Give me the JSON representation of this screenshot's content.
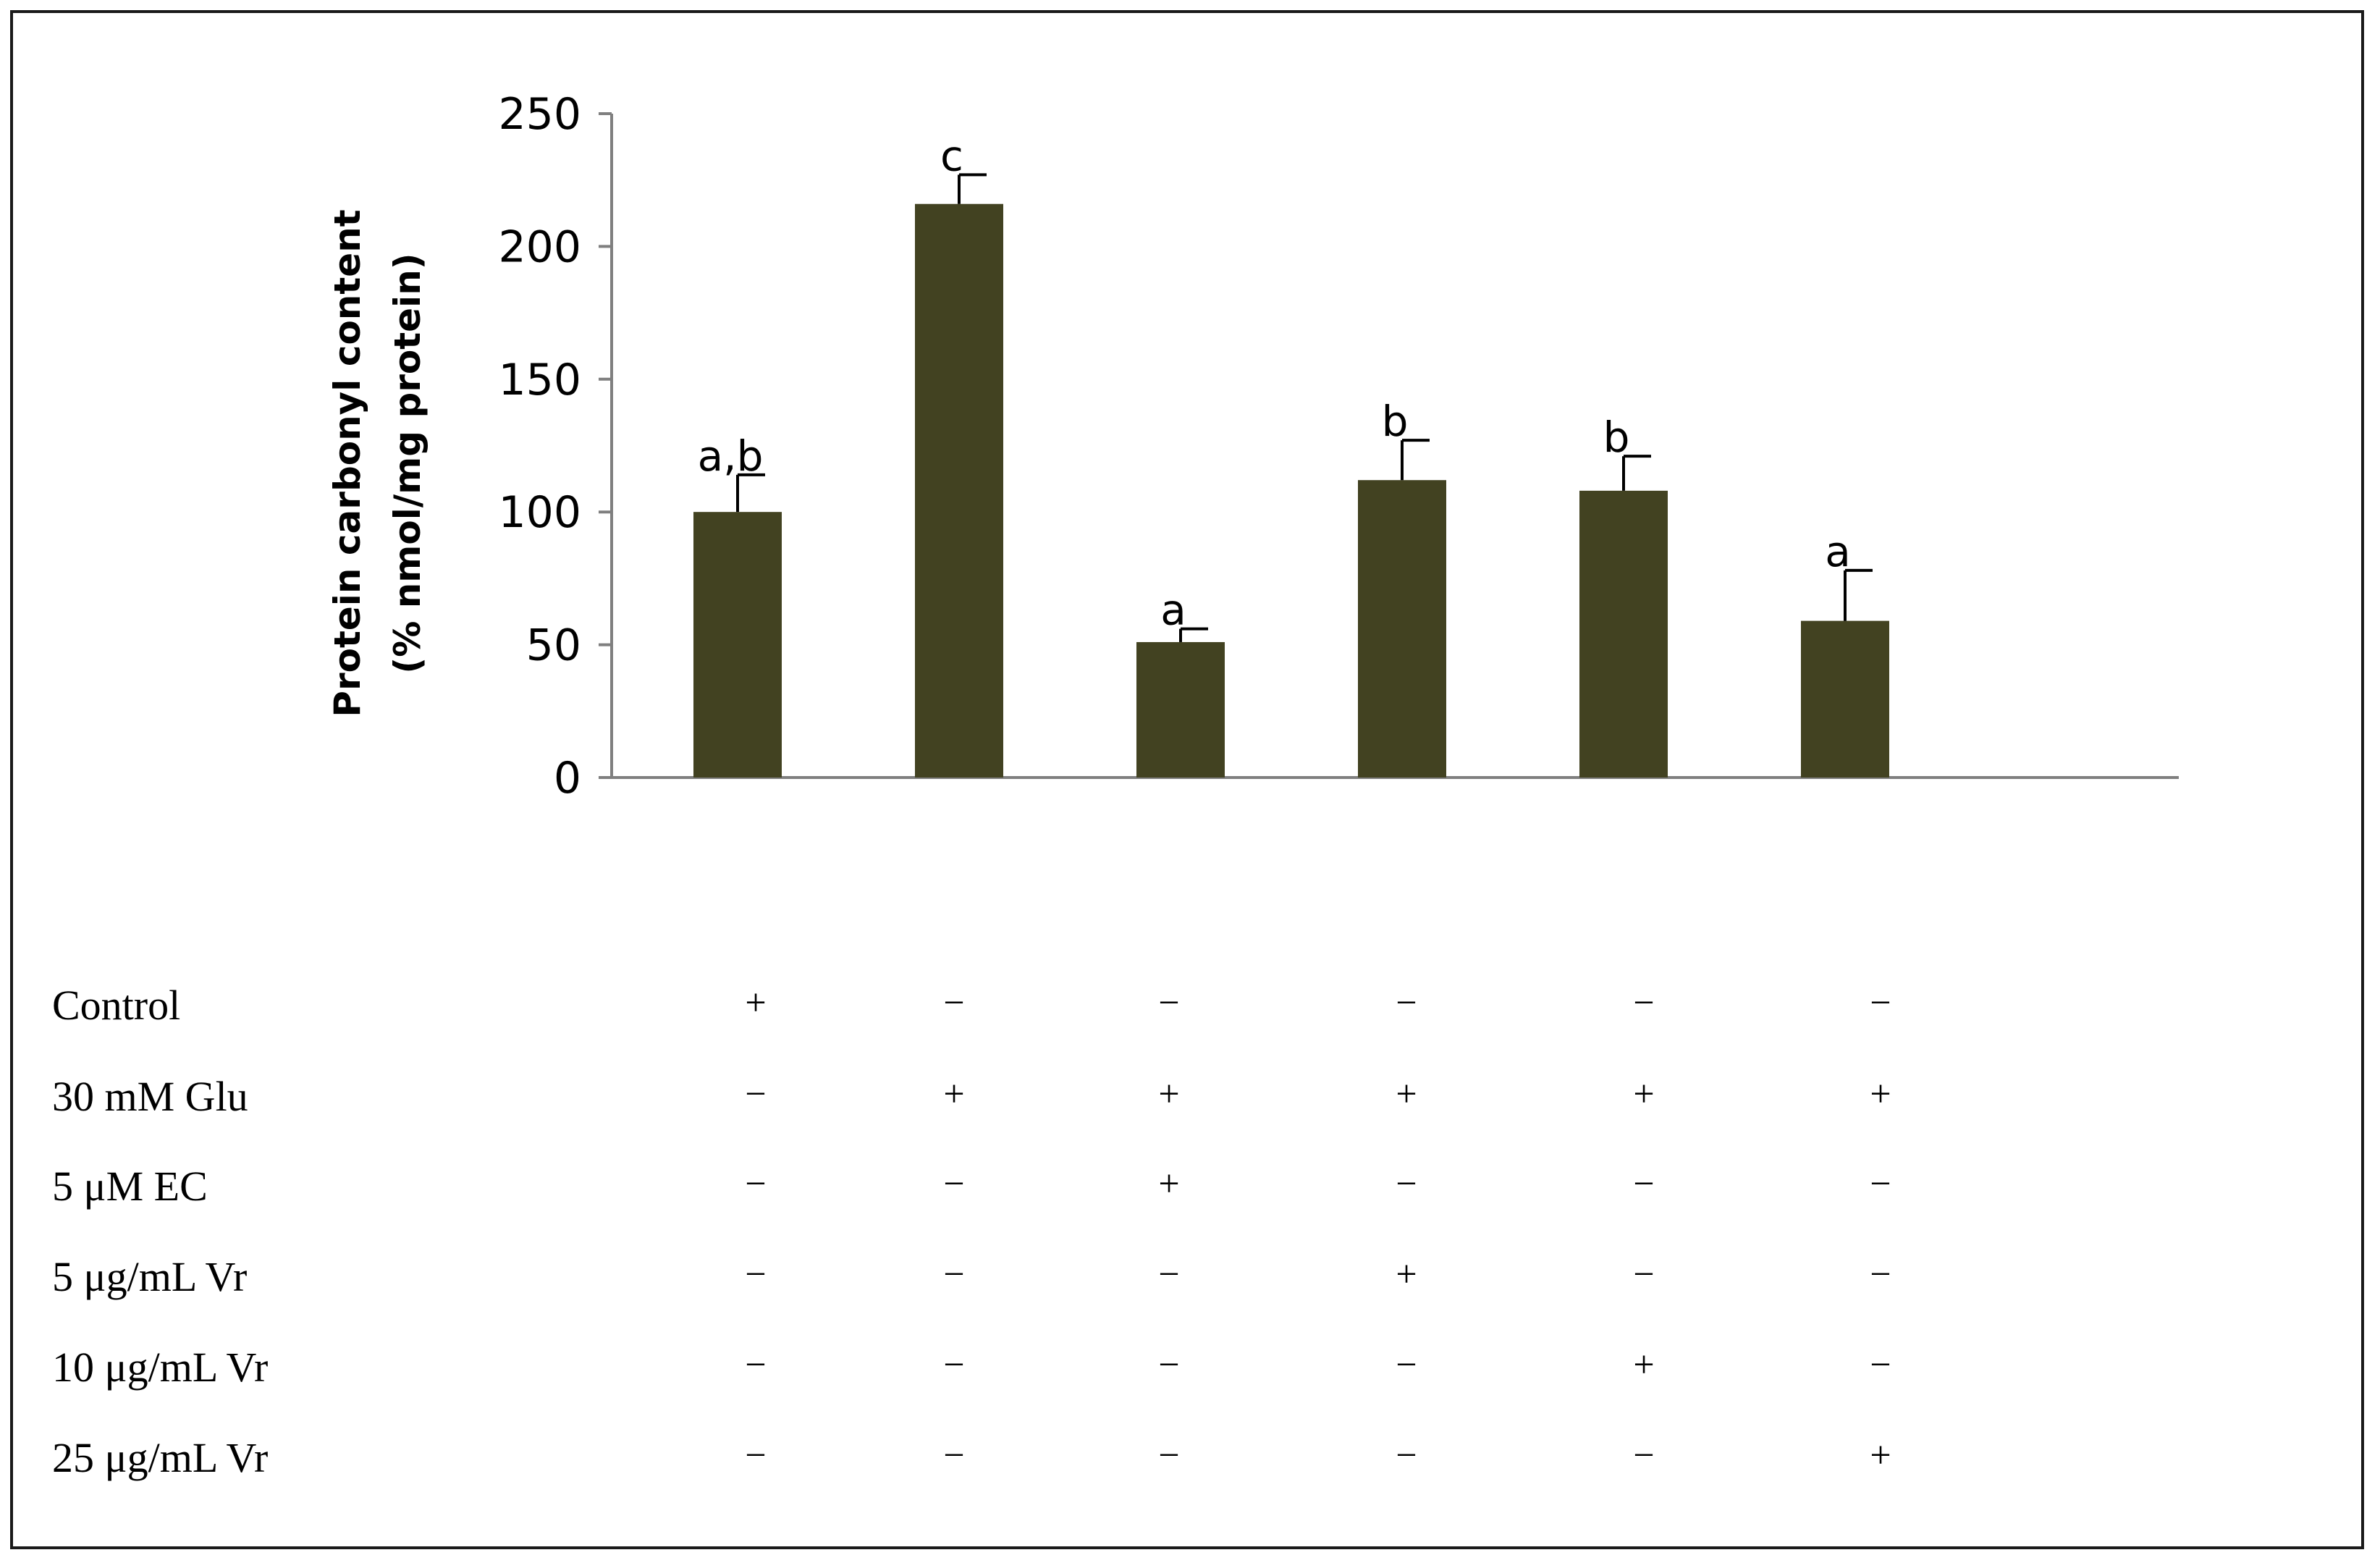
{
  "chart_data": {
    "type": "bar",
    "title": "",
    "xlabel": "",
    "ylabel_lines": [
      "Protein carbonyl content",
      "(% nmol/mg protein)"
    ],
    "ylim": [
      0,
      250
    ],
    "yticks": [
      0,
      50,
      100,
      150,
      200,
      250
    ],
    "grid": false,
    "bar_color": "#424221",
    "values": [
      100,
      216,
      51,
      112,
      108,
      59
    ],
    "errors": [
      14,
      11,
      5,
      15,
      13,
      19
    ],
    "significance": [
      "a,b",
      "c",
      "a",
      "b",
      "b",
      "a"
    ]
  },
  "treatments": {
    "rows": [
      {
        "label": "Control",
        "marks": [
          "+",
          "−",
          "−",
          "−",
          "−",
          "−"
        ]
      },
      {
        "label": "30 mM Glu",
        "marks": [
          "−",
          "+",
          "+",
          "+",
          "+",
          "+"
        ]
      },
      {
        "label": "5 μM EC",
        "marks": [
          "−",
          "−",
          "+",
          "−",
          "−",
          "−"
        ]
      },
      {
        "label": "5 μg/mL Vr",
        "marks": [
          "−",
          "−",
          "−",
          "+",
          "−",
          "−"
        ]
      },
      {
        "label": "10 μg/mL Vr",
        "marks": [
          "−",
          "−",
          "−",
          "−",
          "+",
          "−"
        ]
      },
      {
        "label": "25 μg/mL Vr",
        "marks": [
          "−",
          "−",
          "−",
          "−",
          "−",
          "+"
        ]
      }
    ]
  }
}
